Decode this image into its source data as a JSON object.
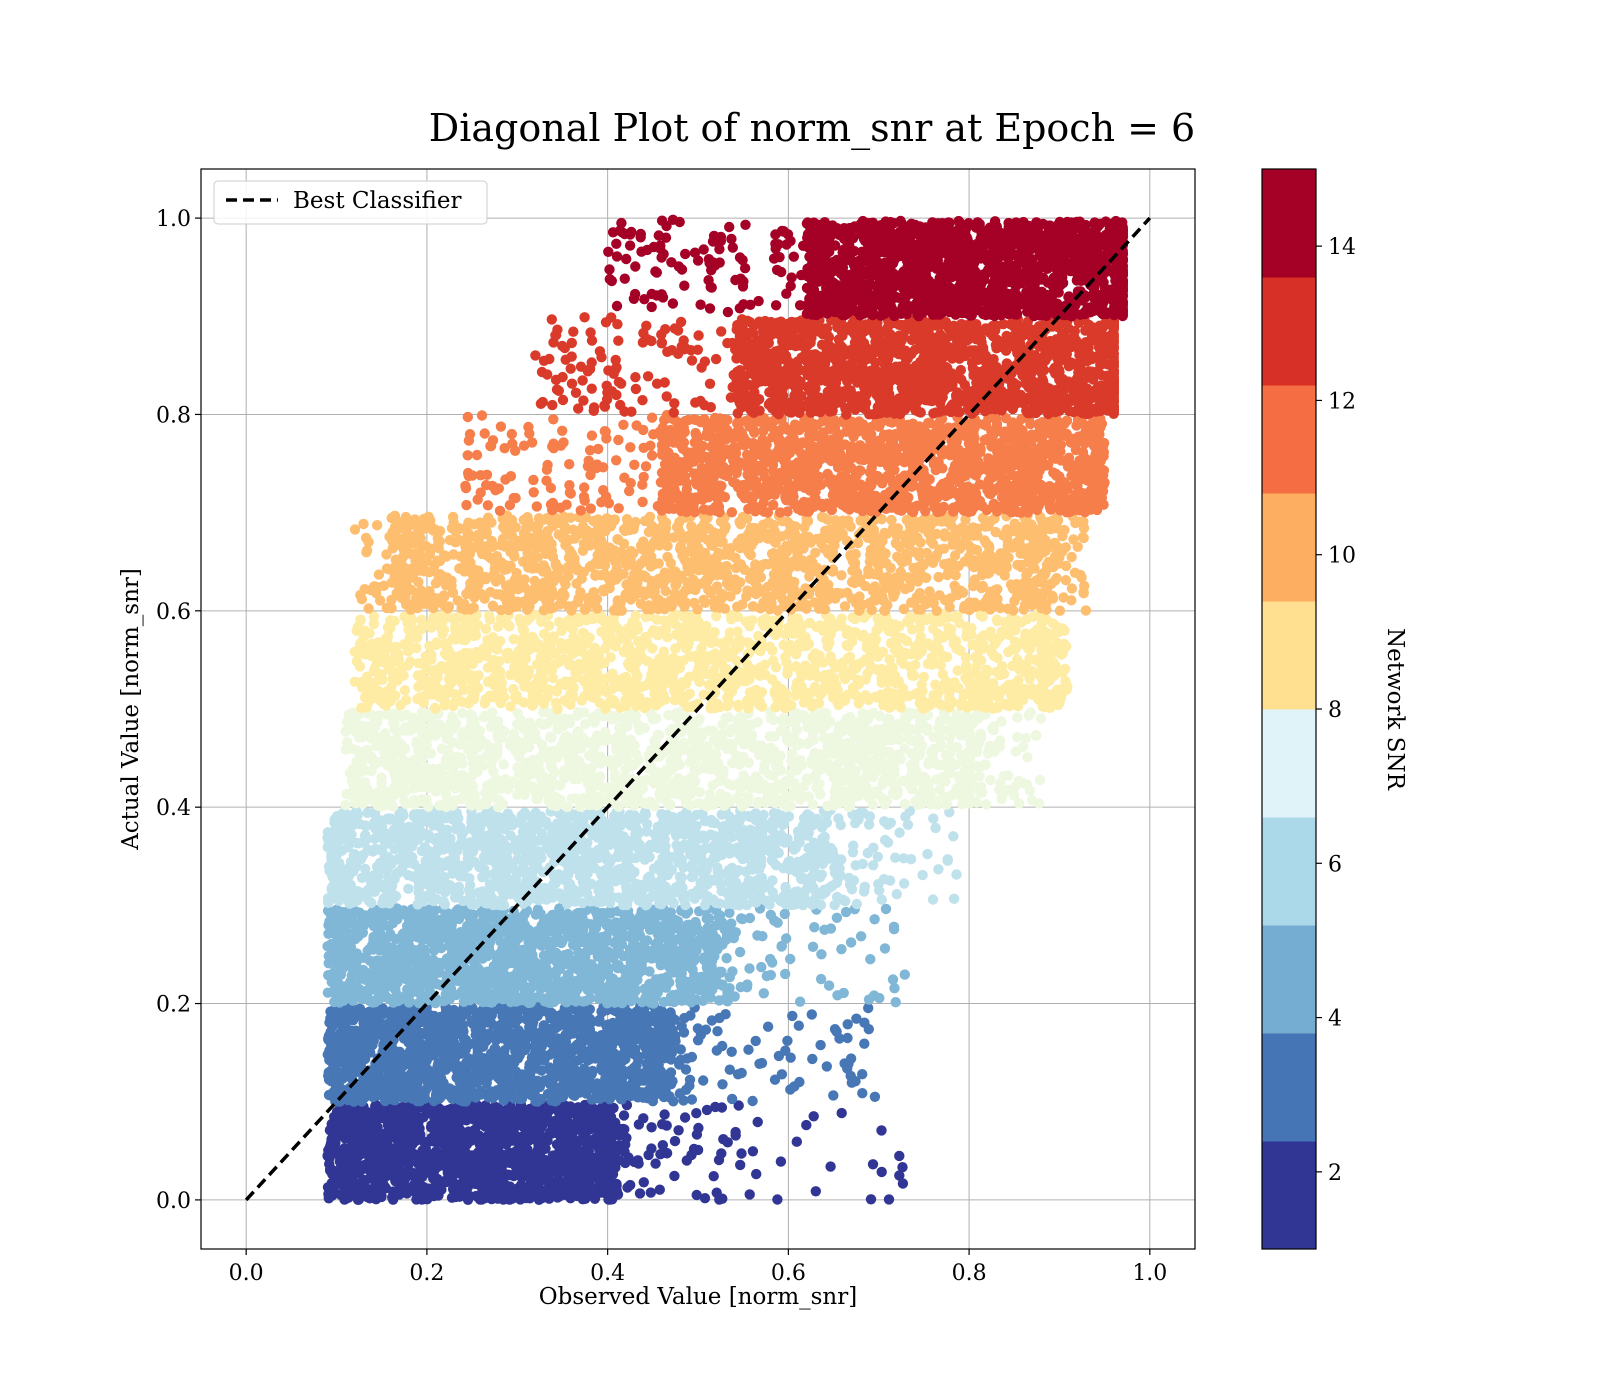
{
  "chart_data": {
    "type": "scatter",
    "title": "Diagonal Plot of norm_snr at Epoch = 6",
    "xlabel": "Observed Value [norm_snr]",
    "ylabel": "Actual Value [norm_snr]",
    "xlim": [
      -0.05,
      1.05
    ],
    "ylim": [
      -0.05,
      1.05
    ],
    "xticks": [
      "0.0",
      "0.2",
      "0.4",
      "0.6",
      "0.8",
      "1.0"
    ],
    "yticks": [
      "0.0",
      "0.2",
      "0.4",
      "0.6",
      "0.8",
      "1.0"
    ],
    "grid": true,
    "legend": {
      "entries": [
        "Best Classifier"
      ],
      "placement": "top-left"
    },
    "reference_line": {
      "name": "Best Classifier",
      "x": [
        0,
        1
      ],
      "y": [
        0,
        1
      ],
      "style": "dashed",
      "color": "#000000"
    },
    "colorbar": {
      "label": "Network SNR",
      "range": [
        1,
        15
      ],
      "ticks": [
        "2",
        "4",
        "6",
        "8",
        "10",
        "12",
        "14"
      ],
      "colors": [
        "#313695",
        "#4575b4",
        "#74add1",
        "#abd9e9",
        "#e0f3f8",
        "#fee090",
        "#fdae61",
        "#f46d43",
        "#d73027",
        "#a50026"
      ]
    },
    "bands": [
      {
        "y": [
          0.0,
          0.1
        ],
        "x_core": [
          0.09,
          0.41
        ],
        "x_tail": 0.74,
        "color": "#313695"
      },
      {
        "y": [
          0.1,
          0.2
        ],
        "x_core": [
          0.09,
          0.47
        ],
        "x_tail": 0.7,
        "color": "#4877b6"
      },
      {
        "y": [
          0.2,
          0.3
        ],
        "x_core": [
          0.09,
          0.52
        ],
        "x_tail": 0.73,
        "color": "#80b6d6"
      },
      {
        "y": [
          0.3,
          0.4
        ],
        "x_core": [
          0.09,
          0.64
        ],
        "x_tail": 0.79,
        "color": "#bee1ec"
      },
      {
        "y": [
          0.4,
          0.5
        ],
        "x_core": [
          0.11,
          0.8
        ],
        "x_tail": 0.88,
        "color": "#eef7e0"
      },
      {
        "y": [
          0.5,
          0.6
        ],
        "x_core": [
          0.12,
          0.88
        ],
        "x_tail": 0.91,
        "color": "#feeca4"
      },
      {
        "y": [
          0.6,
          0.7
        ],
        "x_core": [
          0.16,
          0.88
        ],
        "x_tail": 0.93,
        "color": "#fdbe70"
      },
      {
        "y": [
          0.7,
          0.8
        ],
        "x_core": [
          0.46,
          0.94
        ],
        "x_tail": 0.95,
        "color": "#f67e4b"
      },
      {
        "y": [
          0.8,
          0.9
        ],
        "x_core": [
          0.54,
          0.96
        ],
        "x_tail": 0.96,
        "color": "#da3a2a"
      },
      {
        "y": [
          0.9,
          1.0
        ],
        "x_core": [
          0.62,
          0.97
        ],
        "x_tail": 0.97,
        "color": "#a50026"
      }
    ]
  }
}
